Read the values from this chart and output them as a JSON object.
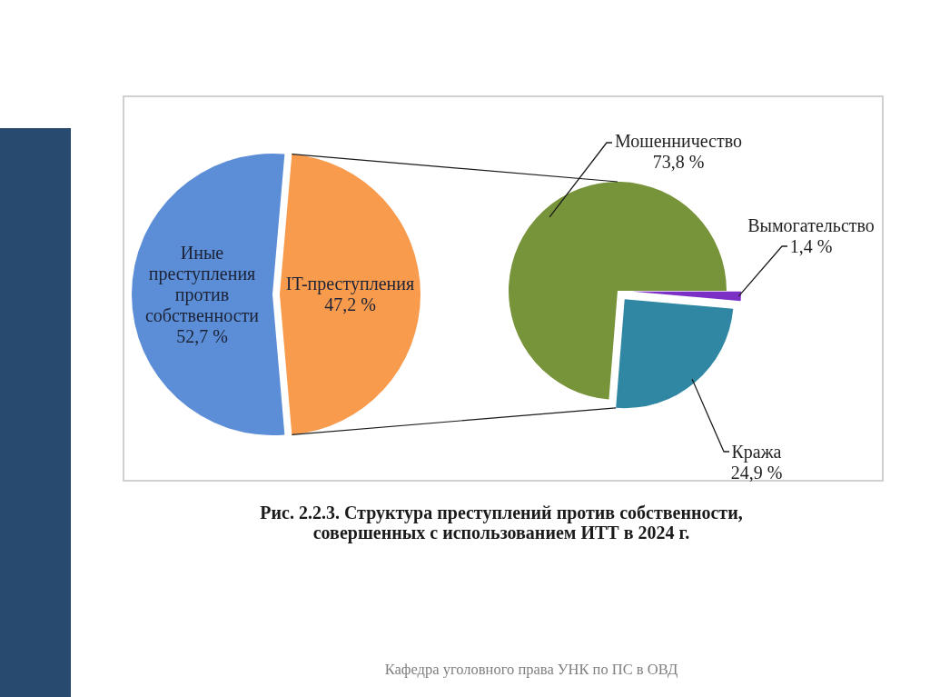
{
  "chart_data": [
    {
      "type": "pie",
      "categories": [
        "Иные преступления против собственности",
        "IT-преступления"
      ],
      "values": [
        52.7,
        47.2
      ],
      "colors": [
        "#5b8ed6",
        "#f89b4d"
      ],
      "value_labels": [
        "52,7 %",
        "47,2 %"
      ],
      "annotations": [
        "Рис. 2.2.3. Структура преступлений против собственности, совершенных с использованием ИТТ в 2024 г.",
        "Кафедра уголовного права УНК по ПС в ОВД"
      ]
    },
    {
      "type": "pie",
      "categories": [
        "Мошенничество",
        "Вымогательство",
        "Кража"
      ],
      "values": [
        73.8,
        1.4,
        24.9
      ],
      "colors": [
        "#77943a",
        "#7b2fc4",
        "#2f87a3"
      ],
      "value_labels": [
        "73,8 %",
        "1,4 %",
        "24,9 %"
      ]
    }
  ]
}
